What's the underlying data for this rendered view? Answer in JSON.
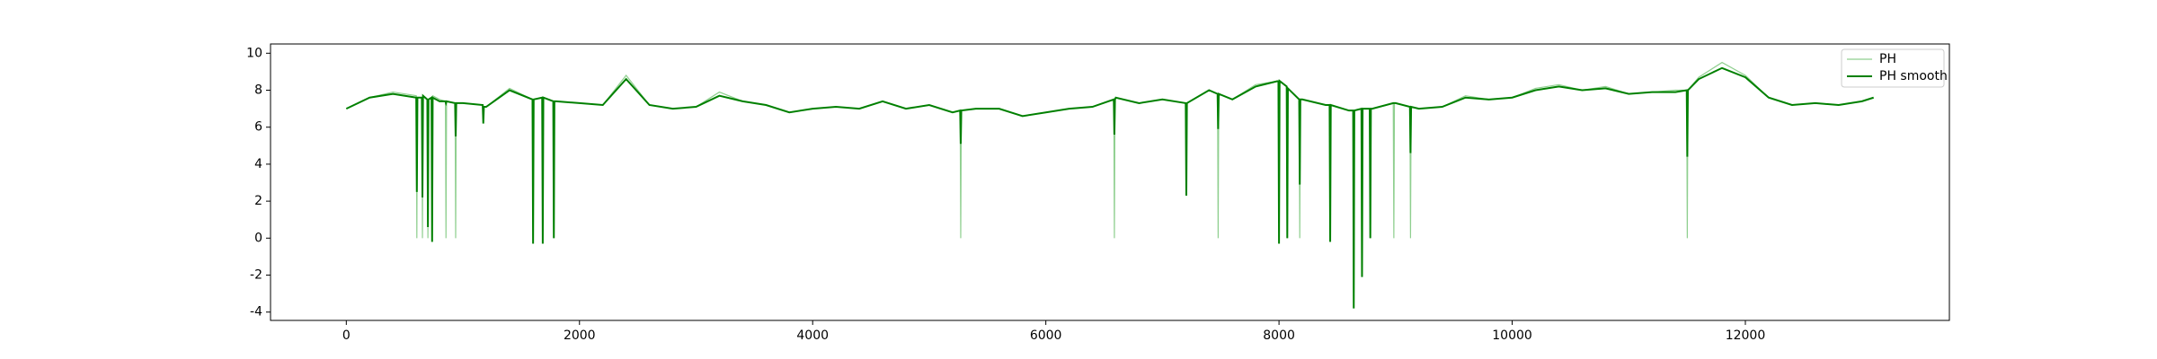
{
  "chart_data": {
    "type": "line",
    "x": [
      0,
      200,
      400,
      600,
      605,
      610,
      648,
      653,
      658,
      695,
      700,
      705,
      731,
      736,
      741,
      800,
      850,
      855,
      860,
      933,
      938,
      943,
      1000,
      1170,
      1175,
      1180,
      1200,
      1400,
      1597,
      1602,
      1607,
      1680,
      1685,
      1690,
      1775,
      1780,
      1785,
      1800,
      2000,
      2200,
      2400,
      2600,
      2800,
      3000,
      3200,
      3400,
      3600,
      3800,
      4000,
      4200,
      4400,
      4600,
      4800,
      5000,
      5200,
      5265,
      5270,
      5275,
      5400,
      5600,
      5800,
      6000,
      6200,
      6400,
      6583,
      6588,
      6593,
      6600,
      6800,
      7000,
      7200,
      7205,
      7210,
      7400,
      7473,
      7478,
      7483,
      7600,
      7800,
      7995,
      8000,
      8005,
      8066,
      8071,
      8076,
      8173,
      8178,
      8183,
      8200,
      8400,
      8434,
      8439,
      8444,
      8600,
      8636,
      8641,
      8646,
      8707,
      8712,
      8717,
      8778,
      8783,
      8788,
      8800,
      8980,
      8985,
      8990,
      9000,
      9123,
      9128,
      9133,
      9200,
      9400,
      9600,
      9800,
      10000,
      10200,
      10400,
      10600,
      10800,
      11000,
      11200,
      11400,
      11497,
      11502,
      11507,
      11600,
      11800,
      12000,
      12200,
      12400,
      12600,
      12800,
      13000,
      13100
    ],
    "series": [
      {
        "name": "PH",
        "color": "#8fcf8f",
        "values": [
          7.0,
          7.6,
          7.9,
          7.7,
          0,
          7.6,
          7.6,
          0,
          7.7,
          7.5,
          0,
          7.5,
          7.6,
          -0.2,
          7.7,
          7.5,
          7.4,
          0,
          7.4,
          7.3,
          0,
          7.3,
          7.3,
          7.2,
          6.2,
          7.1,
          7.1,
          8.1,
          7.5,
          -0.3,
          7.5,
          7.6,
          -0.3,
          7.6,
          7.4,
          0,
          7.4,
          7.4,
          7.3,
          7.2,
          8.8,
          7.2,
          7.0,
          7.1,
          7.9,
          7.4,
          7.2,
          6.8,
          7.0,
          7.1,
          7.0,
          7.4,
          7.0,
          7.2,
          6.8,
          6.9,
          0,
          6.9,
          7.0,
          7.0,
          6.6,
          6.8,
          7.0,
          7.1,
          7.5,
          0,
          7.5,
          7.6,
          7.3,
          7.5,
          7.3,
          2.3,
          7.3,
          8.0,
          7.8,
          0,
          7.8,
          7.5,
          8.3,
          8.5,
          -0.3,
          8.5,
          8.2,
          0,
          8.1,
          7.5,
          0,
          7.5,
          7.5,
          7.2,
          7.2,
          -0.2,
          7.2,
          6.9,
          6.9,
          -3.8,
          6.9,
          7.0,
          -2.1,
          7.0,
          7.0,
          0,
          7.0,
          7.0,
          7.3,
          0,
          7.3,
          7.3,
          7.1,
          0,
          7.1,
          7.0,
          7.1,
          7.7,
          7.5,
          7.6,
          8.1,
          8.3,
          8.0,
          8.2,
          7.8,
          7.9,
          8.0,
          8.0,
          0,
          8.0,
          8.7,
          9.5,
          8.8,
          7.6,
          7.2,
          7.3,
          7.2,
          7.4,
          7.6
        ]
      },
      {
        "name": "PH smooth",
        "color": "#008000",
        "values": [
          7.0,
          7.6,
          7.8,
          7.6,
          2.5,
          7.6,
          7.6,
          2.2,
          7.7,
          7.5,
          0.6,
          7.5,
          7.6,
          -0.2,
          7.6,
          7.4,
          7.4,
          7.3,
          7.4,
          7.3,
          5.5,
          7.3,
          7.3,
          7.2,
          6.2,
          7.1,
          7.1,
          8.0,
          7.5,
          -0.3,
          7.5,
          7.6,
          -0.3,
          7.6,
          7.4,
          0,
          7.4,
          7.4,
          7.3,
          7.2,
          8.6,
          7.2,
          7.0,
          7.1,
          7.7,
          7.4,
          7.2,
          6.8,
          7.0,
          7.1,
          7.0,
          7.4,
          7.0,
          7.2,
          6.8,
          6.9,
          5.1,
          6.9,
          7.0,
          7.0,
          6.6,
          6.8,
          7.0,
          7.1,
          7.5,
          5.6,
          7.5,
          7.6,
          7.3,
          7.5,
          7.3,
          2.3,
          7.3,
          8.0,
          7.8,
          5.9,
          7.8,
          7.5,
          8.2,
          8.5,
          -0.3,
          8.5,
          8.2,
          0,
          8.1,
          7.5,
          2.9,
          7.5,
          7.5,
          7.2,
          7.2,
          -0.2,
          7.2,
          6.9,
          6.9,
          -3.8,
          6.9,
          7.0,
          -2.1,
          7.0,
          7.0,
          0,
          7.0,
          7.0,
          7.3,
          7.3,
          7.3,
          7.3,
          7.1,
          4.6,
          7.1,
          7.0,
          7.1,
          7.6,
          7.5,
          7.6,
          8.0,
          8.2,
          8.0,
          8.1,
          7.8,
          7.9,
          7.9,
          8.0,
          4.4,
          8.0,
          8.6,
          9.2,
          8.7,
          7.6,
          7.2,
          7.3,
          7.2,
          7.4,
          7.6
        ]
      }
    ],
    "xlim": [
      -650,
      13750
    ],
    "ylim": [
      -4.45,
      10.5
    ],
    "xticks": [
      0,
      2000,
      4000,
      6000,
      8000,
      10000,
      12000
    ],
    "yticks": [
      -4,
      -2,
      0,
      2,
      4,
      6,
      8,
      10
    ],
    "legend": "upper right"
  }
}
